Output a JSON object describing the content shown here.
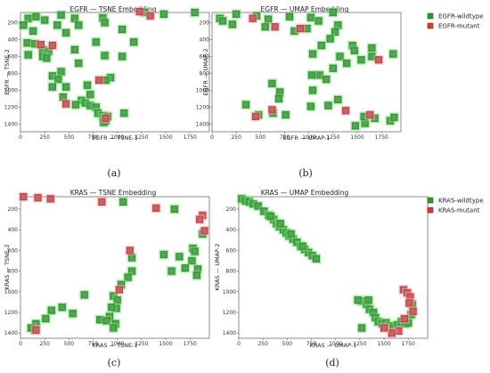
{
  "panel_labels": [
    "(a)",
    "(b)",
    "(c)",
    "(d)"
  ],
  "legends": {
    "egfr": {
      "wildtype": "EGFR-wildtype",
      "mutant": "EGFR-mutant"
    },
    "kras": {
      "wildtype": "KRAS-wildtype",
      "mutant": "KRAS-mutant"
    }
  },
  "colors": {
    "wildtype": "#2a9a2a",
    "mutant": "#d83a3a",
    "point_glow": "#7fe07f"
  },
  "chart_data": [
    {
      "type": "scatter",
      "title": "EGFR — TSNE Embedding",
      "xlabel": "EGFR — TSNE-1",
      "ylabel": "EGFR — TSNE-2",
      "xlim": [
        0,
        1950
      ],
      "ylim": [
        1490,
        80
      ],
      "xticks": [
        0,
        250,
        500,
        750,
        1000,
        1250,
        1500,
        1750
      ],
      "yticks": [
        200,
        400,
        600,
        800,
        1000,
        1200,
        1400
      ],
      "series": [
        {
          "name": "EGFR-wildtype",
          "points": [
            [
              80,
              150
            ],
            [
              160,
              130
            ],
            [
              250,
              170
            ],
            [
              420,
              110
            ],
            [
              560,
              150
            ],
            [
              850,
              145
            ],
            [
              1280,
              80
            ],
            [
              1480,
              100
            ],
            [
              1800,
              80
            ],
            [
              380,
              230
            ],
            [
              600,
              230
            ],
            [
              870,
              200
            ],
            [
              30,
              230
            ],
            [
              130,
              300
            ],
            [
              470,
              320
            ],
            [
              1050,
              280
            ],
            [
              70,
              440
            ],
            [
              150,
              450
            ],
            [
              230,
              520
            ],
            [
              290,
              540
            ],
            [
              80,
              580
            ],
            [
              230,
              600
            ],
            [
              270,
              620
            ],
            [
              780,
              430
            ],
            [
              560,
              520
            ],
            [
              870,
              590
            ],
            [
              1050,
              600
            ],
            [
              1170,
              430
            ],
            [
              600,
              680
            ],
            [
              420,
              780
            ],
            [
              330,
              830
            ],
            [
              390,
              870
            ],
            [
              330,
              960
            ],
            [
              470,
              960
            ],
            [
              690,
              940
            ],
            [
              930,
              850
            ],
            [
              880,
              880
            ],
            [
              440,
              1080
            ],
            [
              630,
              1120
            ],
            [
              670,
              1150
            ],
            [
              720,
              1180
            ],
            [
              570,
              1170
            ],
            [
              780,
              1200
            ],
            [
              800,
              1270
            ],
            [
              1070,
              1270
            ],
            [
              850,
              1300
            ],
            [
              860,
              1330
            ],
            [
              880,
              1360
            ],
            [
              900,
              1310
            ],
            [
              860,
              1380
            ],
            [
              720,
              1050
            ]
          ]
        },
        {
          "name": "EGFR-mutant",
          "points": [
            [
              1230,
              70
            ],
            [
              1340,
              120
            ],
            [
              210,
              460
            ],
            [
              330,
              470
            ],
            [
              810,
              880
            ],
            [
              470,
              1160
            ],
            [
              880,
              1330
            ]
          ]
        }
      ]
    },
    {
      "type": "scatter",
      "title": "EGFR — UMAP Embedding",
      "xlabel": "EGFR — UMAP-1",
      "ylabel": "EGFR — UMAP-2",
      "xlim": [
        0,
        1950
      ],
      "ylim": [
        1490,
        80
      ],
      "xticks": [
        0,
        250,
        500,
        750,
        1000,
        1250,
        1500,
        1750
      ],
      "yticks": [
        200,
        400,
        600,
        800,
        1000,
        1200,
        1400
      ],
      "series": [
        {
          "name": "EGFR-wildtype",
          "points": [
            [
              250,
              100
            ],
            [
              1250,
              80
            ],
            [
              460,
              120
            ],
            [
              800,
              130
            ],
            [
              580,
              160
            ],
            [
              1020,
              140
            ],
            [
              1100,
              180
            ],
            [
              80,
              150
            ],
            [
              210,
              220
            ],
            [
              110,
              180
            ],
            [
              1300,
              230
            ],
            [
              550,
              250
            ],
            [
              980,
              270
            ],
            [
              850,
              300
            ],
            [
              1270,
              310
            ],
            [
              1450,
              470
            ],
            [
              1650,
              500
            ],
            [
              1870,
              570
            ],
            [
              1220,
              390
            ],
            [
              1130,
              470
            ],
            [
              1470,
              530
            ],
            [
              1650,
              600
            ],
            [
              1040,
              570
            ],
            [
              1320,
              600
            ],
            [
              1540,
              640
            ],
            [
              1390,
              680
            ],
            [
              1250,
              740
            ],
            [
              1110,
              820
            ],
            [
              1180,
              870
            ],
            [
              1030,
              820
            ],
            [
              620,
              920
            ],
            [
              700,
              1020
            ],
            [
              350,
              1170
            ],
            [
              690,
              1100
            ],
            [
              480,
              1290
            ],
            [
              630,
              1270
            ],
            [
              760,
              1290
            ],
            [
              1040,
              1000
            ],
            [
              1020,
              1190
            ],
            [
              1200,
              1180
            ],
            [
              1300,
              1110
            ],
            [
              1480,
              1420
            ],
            [
              1580,
              1390
            ],
            [
              1680,
              1330
            ],
            [
              1840,
              1360
            ],
            [
              1880,
              1320
            ],
            [
              1570,
              1310
            ]
          ]
        },
        {
          "name": "EGFR-mutant",
          "points": [
            [
              420,
              150
            ],
            [
              650,
              250
            ],
            [
              910,
              270
            ],
            [
              1720,
              640
            ],
            [
              1380,
              1240
            ],
            [
              1630,
              1290
            ],
            [
              620,
              1230
            ],
            [
              450,
              1310
            ]
          ]
        }
      ]
    },
    {
      "type": "scatter",
      "title": "KRAS — TSNE Embedding",
      "xlabel": "KRAS — TSNE-1",
      "ylabel": "KRAS — TSNE-2",
      "xlim": [
        0,
        1950
      ],
      "ylim": [
        1450,
        80
      ],
      "xticks": [
        0,
        250,
        500,
        750,
        1000,
        1250,
        1500,
        1750
      ],
      "yticks": [
        200,
        400,
        600,
        800,
        1000,
        1200,
        1400
      ],
      "series": [
        {
          "name": "KRAS-wildtype",
          "points": [
            [
              1060,
              130
            ],
            [
              1590,
              200
            ],
            [
              1880,
              440
            ],
            [
              1780,
              580
            ],
            [
              1800,
              610
            ],
            [
              1770,
              700
            ],
            [
              1700,
              770
            ],
            [
              1830,
              780
            ],
            [
              1560,
              800
            ],
            [
              1150,
              670
            ],
            [
              1480,
              640
            ],
            [
              1150,
              800
            ],
            [
              1110,
              860
            ],
            [
              1040,
              930
            ],
            [
              960,
              1040
            ],
            [
              1000,
              1080
            ],
            [
              990,
              1160
            ],
            [
              940,
              1150
            ],
            [
              920,
              1240
            ],
            [
              820,
              1270
            ],
            [
              890,
              1280
            ],
            [
              980,
              1310
            ],
            [
              960,
              1350
            ],
            [
              660,
              1030
            ],
            [
              540,
              1210
            ],
            [
              430,
              1150
            ],
            [
              320,
              1180
            ],
            [
              260,
              1260
            ],
            [
              160,
              1310
            ],
            [
              150,
              1370
            ],
            [
              110,
              1350
            ],
            [
              1640,
              660
            ],
            [
              1820,
              840
            ]
          ]
        },
        {
          "name": "KRAS-mutant",
          "points": [
            [
              30,
              80
            ],
            [
              180,
              90
            ],
            [
              310,
              100
            ],
            [
              840,
              130
            ],
            [
              1400,
              190
            ],
            [
              1880,
              260
            ],
            [
              1850,
              300
            ],
            [
              1900,
              410
            ],
            [
              1020,
              980
            ],
            [
              1130,
              600
            ],
            [
              160,
              1370
            ]
          ]
        }
      ]
    },
    {
      "type": "scatter",
      "title": "KRAS — UMAP Embedding",
      "xlabel": "KRAS — UMAP-1",
      "ylabel": "KRAS — UMAP-2",
      "xlim": [
        0,
        1950
      ],
      "ylim": [
        1450,
        80
      ],
      "xticks": [
        0,
        250,
        500,
        750,
        1000,
        1250,
        1500,
        1750
      ],
      "yticks": [
        200,
        400,
        600,
        800,
        1000,
        1200,
        1400
      ],
      "series": [
        {
          "name": "KRAS-wildtype",
          "points": [
            [
              30,
              100
            ],
            [
              70,
              120
            ],
            [
              110,
              130
            ],
            [
              150,
              150
            ],
            [
              200,
              170
            ],
            [
              260,
              220
            ],
            [
              310,
              260
            ],
            [
              360,
              300
            ],
            [
              390,
              340
            ],
            [
              420,
              370
            ],
            [
              460,
              400
            ],
            [
              490,
              430
            ],
            [
              520,
              460
            ],
            [
              560,
              490
            ],
            [
              600,
              520
            ],
            [
              640,
              560
            ],
            [
              680,
              590
            ],
            [
              720,
              620
            ],
            [
              760,
              650
            ],
            [
              800,
              680
            ],
            [
              430,
              340
            ],
            [
              540,
              440
            ],
            [
              660,
              560
            ],
            [
              330,
              270
            ],
            [
              1270,
              1090
            ],
            [
              1320,
              1120
            ],
            [
              1350,
              1170
            ],
            [
              1390,
              1200
            ],
            [
              1410,
              1250
            ],
            [
              1440,
              1290
            ],
            [
              1480,
              1310
            ],
            [
              1520,
              1300
            ],
            [
              1560,
              1330
            ],
            [
              1600,
              1350
            ],
            [
              1640,
              1320
            ],
            [
              1680,
              1290
            ],
            [
              1720,
              1310
            ],
            [
              1750,
              1300
            ],
            [
              1780,
              1220
            ],
            [
              1790,
              1120
            ],
            [
              1270,
              1350
            ],
            [
              1230,
              1080
            ],
            [
              1340,
              1080
            ]
          ]
        },
        {
          "name": "KRAS-mutant",
          "points": [
            [
              1700,
              980
            ],
            [
              1740,
              1010
            ],
            [
              1770,
              1050
            ],
            [
              1760,
              1110
            ],
            [
              1800,
              1190
            ],
            [
              1710,
              1260
            ],
            [
              1650,
              1380
            ],
            [
              1580,
              1400
            ],
            [
              1500,
              1350
            ]
          ]
        }
      ]
    }
  ]
}
